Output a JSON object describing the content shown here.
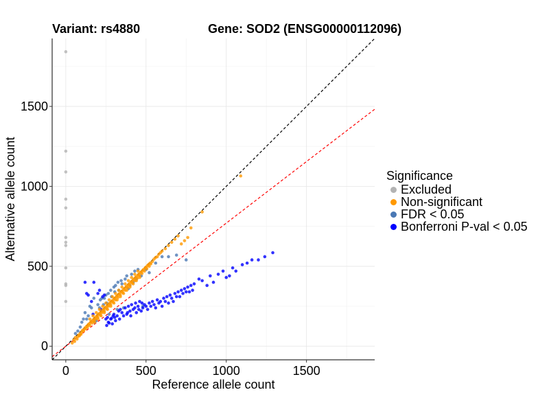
{
  "chart_data": {
    "type": "scatter",
    "title_left": "Variant: rs4880",
    "title_right": "Gene: SOD2 (ENSG00000112096)",
    "xlabel": "Reference allele count",
    "ylabel": "Alternative allele count",
    "xlim": [
      -85,
      1925
    ],
    "ylim": [
      -85,
      1925
    ],
    "xticks": [
      0,
      500,
      1000,
      1500
    ],
    "yticks": [
      0,
      500,
      1000,
      1500
    ],
    "grid": true,
    "reference_lines": [
      {
        "name": "identity",
        "slope": 1.0,
        "intercept": 0,
        "color": "#000000",
        "dashed": true
      },
      {
        "name": "expected-ratio",
        "slope": 0.77,
        "intercept": 0,
        "color": "#ff0000",
        "dashed": true
      }
    ],
    "legend": {
      "title": "Significance",
      "position": "right",
      "entries": [
        {
          "label": "Excluded",
          "color": "#b3b3b3"
        },
        {
          "label": "Non-significant",
          "color": "#ff9900"
        },
        {
          "label": "FDR < 0.05",
          "color": "#4a78b4"
        },
        {
          "label": "Bonferroni P-val < 0.05",
          "color": "#0000ff"
        }
      ]
    },
    "series": [
      {
        "name": "Excluded",
        "color": "#b3b3b3",
        "points": [
          [
            0,
            1842
          ],
          [
            0,
            1220
          ],
          [
            0,
            1090
          ],
          [
            0,
            920
          ],
          [
            0,
            865
          ],
          [
            0,
            680
          ],
          [
            0,
            650
          ],
          [
            0,
            630
          ],
          [
            0,
            490
          ],
          [
            0,
            390
          ],
          [
            0,
            380
          ],
          [
            0,
            280
          ]
        ]
      },
      {
        "name": "FDR < 0.05",
        "color": "#4a78b4",
        "points": [
          [
            60,
            80
          ],
          [
            75,
            95
          ],
          [
            90,
            120
          ],
          [
            100,
            150
          ],
          [
            110,
            170
          ],
          [
            120,
            210
          ],
          [
            130,
            170
          ],
          [
            140,
            190
          ],
          [
            150,
            250
          ],
          [
            160,
            240
          ],
          [
            175,
            300
          ],
          [
            180,
            150
          ],
          [
            190,
            160
          ],
          [
            200,
            260
          ],
          [
            210,
            240
          ],
          [
            215,
            290
          ],
          [
            225,
            300
          ],
          [
            235,
            260
          ],
          [
            240,
            300
          ],
          [
            250,
            320
          ],
          [
            255,
            270
          ],
          [
            265,
            330
          ],
          [
            270,
            200
          ],
          [
            280,
            350
          ],
          [
            285,
            310
          ],
          [
            300,
            370
          ],
          [
            305,
            340
          ],
          [
            310,
            380
          ],
          [
            320,
            230
          ],
          [
            325,
            400
          ],
          [
            330,
            350
          ],
          [
            345,
            410
          ],
          [
            350,
            390
          ],
          [
            360,
            240
          ],
          [
            370,
            420
          ],
          [
            380,
            440
          ],
          [
            390,
            360
          ],
          [
            400,
            380
          ],
          [
            410,
            450
          ],
          [
            420,
            400
          ],
          [
            430,
            470
          ],
          [
            440,
            420
          ],
          [
            450,
            480
          ],
          [
            470,
            440
          ],
          [
            480,
            250
          ],
          [
            500,
            480
          ],
          [
            520,
            460
          ],
          [
            560,
            520
          ],
          [
            600,
            560
          ],
          [
            640,
            560
          ],
          [
            690,
            570
          ],
          [
            750,
            540
          ]
        ]
      },
      {
        "name": "Bonferroni P-val < 0.05",
        "color": "#0000ff",
        "points": [
          [
            120,
            400
          ],
          [
            130,
            330
          ],
          [
            140,
            320
          ],
          [
            160,
            280
          ],
          [
            170,
            200
          ],
          [
            175,
            400
          ],
          [
            200,
            330
          ],
          [
            210,
            350
          ],
          [
            220,
            230
          ],
          [
            230,
            310
          ],
          [
            240,
            320
          ],
          [
            250,
            170
          ],
          [
            255,
            130
          ],
          [
            260,
            180
          ],
          [
            265,
            150
          ],
          [
            270,
            145
          ],
          [
            280,
            170
          ],
          [
            285,
            175
          ],
          [
            290,
            140
          ],
          [
            295,
            190
          ],
          [
            300,
            200
          ],
          [
            305,
            180
          ],
          [
            310,
            160
          ],
          [
            320,
            190
          ],
          [
            330,
            220
          ],
          [
            335,
            170
          ],
          [
            340,
            230
          ],
          [
            350,
            210
          ],
          [
            360,
            190
          ],
          [
            370,
            240
          ],
          [
            380,
            200
          ],
          [
            385,
            210
          ],
          [
            390,
            250
          ],
          [
            400,
            220
          ],
          [
            405,
            190
          ],
          [
            410,
            260
          ],
          [
            420,
            230
          ],
          [
            430,
            240
          ],
          [
            435,
            270
          ],
          [
            440,
            210
          ],
          [
            450,
            250
          ],
          [
            455,
            230
          ],
          [
            460,
            280
          ],
          [
            470,
            220
          ],
          [
            475,
            270
          ],
          [
            480,
            240
          ],
          [
            490,
            260
          ],
          [
            500,
            250
          ],
          [
            510,
            230
          ],
          [
            520,
            270
          ],
          [
            530,
            250
          ],
          [
            540,
            280
          ],
          [
            550,
            260
          ],
          [
            560,
            240
          ],
          [
            570,
            290
          ],
          [
            580,
            270
          ],
          [
            590,
            280
          ],
          [
            600,
            250
          ],
          [
            610,
            300
          ],
          [
            620,
            280
          ],
          [
            630,
            310
          ],
          [
            640,
            270
          ],
          [
            650,
            320
          ],
          [
            660,
            300
          ],
          [
            670,
            280
          ],
          [
            680,
            330
          ],
          [
            690,
            310
          ],
          [
            700,
            340
          ],
          [
            710,
            310
          ],
          [
            720,
            350
          ],
          [
            730,
            330
          ],
          [
            740,
            360
          ],
          [
            750,
            340
          ],
          [
            760,
            370
          ],
          [
            770,
            340
          ],
          [
            780,
            380
          ],
          [
            790,
            350
          ],
          [
            800,
            390
          ],
          [
            830,
            420
          ],
          [
            850,
            410
          ],
          [
            880,
            380
          ],
          [
            900,
            440
          ],
          [
            920,
            400
          ],
          [
            950,
            450
          ],
          [
            980,
            470
          ],
          [
            1000,
            430
          ],
          [
            1020,
            440
          ],
          [
            1040,
            490
          ],
          [
            1060,
            470
          ],
          [
            1100,
            510
          ],
          [
            1130,
            520
          ],
          [
            1160,
            540
          ],
          [
            1200,
            540
          ],
          [
            1240,
            560
          ],
          [
            1290,
            585
          ]
        ]
      },
      {
        "name": "Non-significant",
        "color": "#ff9900",
        "points": [
          [
            40,
            20
          ],
          [
            50,
            40
          ],
          [
            55,
            30
          ],
          [
            60,
            55
          ],
          [
            70,
            45
          ],
          [
            75,
            60
          ],
          [
            80,
            70
          ],
          [
            85,
            65
          ],
          [
            90,
            80
          ],
          [
            95,
            75
          ],
          [
            100,
            90
          ],
          [
            105,
            100
          ],
          [
            110,
            95
          ],
          [
            115,
            105
          ],
          [
            120,
            115
          ],
          [
            125,
            110
          ],
          [
            130,
            125
          ],
          [
            135,
            120
          ],
          [
            140,
            135
          ],
          [
            145,
            140
          ],
          [
            150,
            130
          ],
          [
            155,
            150
          ],
          [
            160,
            155
          ],
          [
            165,
            145
          ],
          [
            170,
            165
          ],
          [
            175,
            160
          ],
          [
            180,
            175
          ],
          [
            185,
            170
          ],
          [
            190,
            185
          ],
          [
            195,
            190
          ],
          [
            200,
            180
          ],
          [
            205,
            200
          ],
          [
            210,
            205
          ],
          [
            215,
            195
          ],
          [
            220,
            215
          ],
          [
            225,
            210
          ],
          [
            230,
            225
          ],
          [
            235,
            230
          ],
          [
            240,
            220
          ],
          [
            245,
            240
          ],
          [
            250,
            245
          ],
          [
            255,
            235
          ],
          [
            260,
            255
          ],
          [
            265,
            250
          ],
          [
            270,
            265
          ],
          [
            275,
            270
          ],
          [
            280,
            260
          ],
          [
            285,
            280
          ],
          [
            290,
            285
          ],
          [
            295,
            275
          ],
          [
            300,
            295
          ],
          [
            305,
            300
          ],
          [
            310,
            290
          ],
          [
            315,
            310
          ],
          [
            320,
            315
          ],
          [
            325,
            305
          ],
          [
            330,
            325
          ],
          [
            335,
            330
          ],
          [
            340,
            320
          ],
          [
            345,
            340
          ],
          [
            350,
            345
          ],
          [
            355,
            335
          ],
          [
            360,
            355
          ],
          [
            365,
            360
          ],
          [
            370,
            350
          ],
          [
            375,
            370
          ],
          [
            380,
            375
          ],
          [
            385,
            365
          ],
          [
            390,
            385
          ],
          [
            395,
            390
          ],
          [
            400,
            380
          ],
          [
            405,
            400
          ],
          [
            410,
            405
          ],
          [
            415,
            395
          ],
          [
            420,
            415
          ],
          [
            425,
            420
          ],
          [
            430,
            410
          ],
          [
            435,
            430
          ],
          [
            440,
            435
          ],
          [
            445,
            425
          ],
          [
            450,
            445
          ],
          [
            455,
            450
          ],
          [
            460,
            440
          ],
          [
            465,
            460
          ],
          [
            470,
            465
          ],
          [
            475,
            455
          ],
          [
            480,
            475
          ],
          [
            485,
            480
          ],
          [
            490,
            470
          ],
          [
            495,
            490
          ],
          [
            500,
            495
          ],
          [
            505,
            485
          ],
          [
            510,
            505
          ],
          [
            515,
            510
          ],
          [
            520,
            500
          ],
          [
            525,
            520
          ],
          [
            530,
            515
          ],
          [
            540,
            530
          ],
          [
            550,
            545
          ],
          [
            560,
            555
          ],
          [
            570,
            560
          ],
          [
            580,
            575
          ],
          [
            590,
            585
          ],
          [
            600,
            595
          ],
          [
            620,
            610
          ],
          [
            640,
            630
          ],
          [
            660,
            650
          ],
          [
            680,
            670
          ],
          [
            700,
            690
          ],
          [
            720,
            640
          ],
          [
            740,
            660
          ],
          [
            760,
            680
          ],
          [
            780,
            740
          ],
          [
            850,
            840
          ],
          [
            1090,
            1065
          ],
          [
            180,
            150
          ],
          [
            200,
            170
          ],
          [
            220,
            190
          ],
          [
            240,
            210
          ],
          [
            260,
            230
          ],
          [
            280,
            250
          ],
          [
            300,
            270
          ],
          [
            320,
            290
          ],
          [
            340,
            310
          ],
          [
            360,
            330
          ],
          [
            380,
            350
          ],
          [
            400,
            370
          ],
          [
            420,
            390
          ],
          [
            440,
            410
          ],
          [
            460,
            430
          ],
          [
            150,
            170
          ],
          [
            170,
            190
          ],
          [
            190,
            210
          ],
          [
            210,
            230
          ],
          [
            230,
            250
          ],
          [
            250,
            270
          ],
          [
            270,
            290
          ],
          [
            290,
            310
          ],
          [
            310,
            330
          ],
          [
            330,
            350
          ],
          [
            350,
            370
          ],
          [
            370,
            390
          ],
          [
            390,
            410
          ],
          [
            410,
            430
          ],
          [
            430,
            450
          ],
          [
            450,
            470
          ]
        ]
      }
    ]
  }
}
